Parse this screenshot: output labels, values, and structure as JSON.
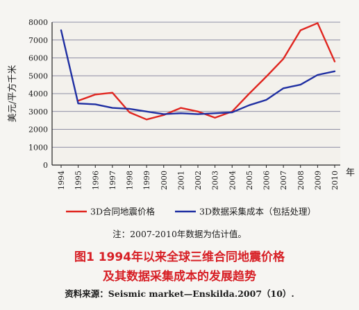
{
  "chart_data": {
    "type": "line",
    "ylabel": "美元/平方千米",
    "x_unit": "年",
    "categories": [
      "1994",
      "1995",
      "1996",
      "1997",
      "1998",
      "1999",
      "2000",
      "2001",
      "2002",
      "2003",
      "2004",
      "2005",
      "2006",
      "2007",
      "2008",
      "2009",
      "2010"
    ],
    "yticks": [
      0,
      1000,
      2000,
      3000,
      4000,
      5000,
      6000,
      7000,
      8000
    ],
    "ylim": [
      0,
      8000
    ],
    "grid": true,
    "legend_position": "bottom",
    "series": [
      {
        "name": "3D合同地震价格",
        "color": "#e0251f",
        "values": [
          null,
          3600,
          3950,
          4050,
          2950,
          2550,
          2800,
          3200,
          3000,
          2650,
          3000,
          4000,
          4950,
          5950,
          7550,
          7950,
          5800
        ]
      },
      {
        "name": "3D数据采集成本（包括处理）",
        "color": "#1f2fa2",
        "values": [
          7550,
          3450,
          3400,
          3200,
          3150,
          3000,
          2850,
          2900,
          2850,
          2900,
          2950,
          3350,
          3650,
          4300,
          4500,
          5050,
          5250
        ]
      }
    ]
  },
  "note": "注：2007-2010年数据为估计值。",
  "title_line1": "图1    1994年以来全球三维合同地震价格",
  "title_line2": "及其数据采集成本的发展趋势",
  "source": "资料来源：Seismic market—Enskilda.2007（10）."
}
